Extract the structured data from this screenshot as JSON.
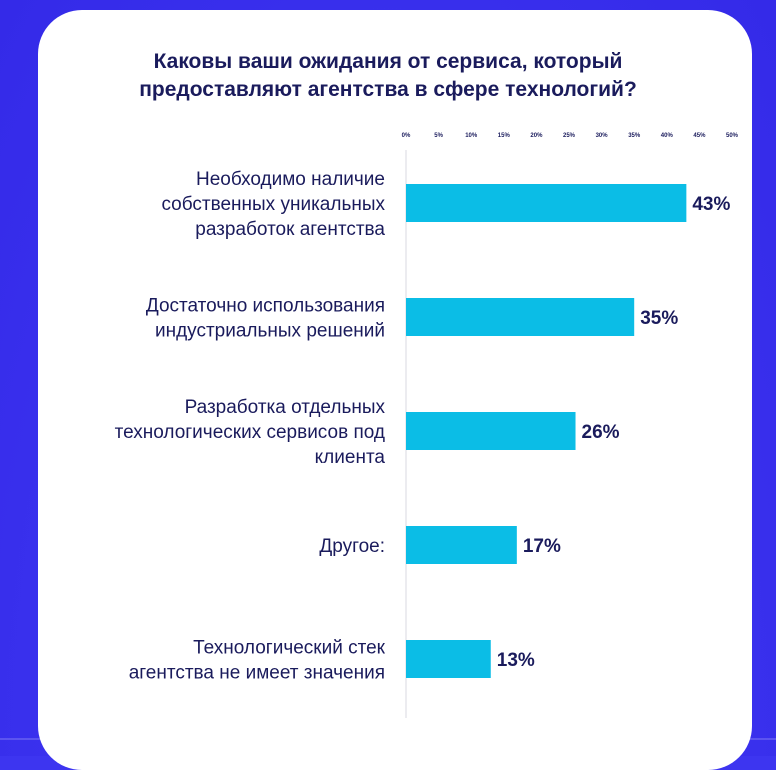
{
  "colors": {
    "background": "#3d35f0",
    "card": "#ffffff",
    "bar": "#0bbde6",
    "text": "#1a1b5c"
  },
  "chart_data": {
    "type": "bar",
    "orientation": "horizontal",
    "title_lines": [
      "Каковы ваши ожидания от сервиса, который",
      "предоставляют агентства в сфере технологий?"
    ],
    "xlim": [
      0,
      50
    ],
    "ticks": [
      "0%",
      "5%",
      "10%",
      "15%",
      "20%",
      "25%",
      "30%",
      "35%",
      "40%",
      "45%",
      "50%"
    ],
    "categories": [
      [
        "Необходимо наличие",
        "собственных уникальных",
        "разработок агентства"
      ],
      [
        "Достаточно использования",
        "индустриальных решений"
      ],
      [
        "Разработка отдельных",
        "технологических сервисов под",
        "клиента"
      ],
      [
        "Другое:"
      ],
      [
        "Технологический стек",
        "агентства не имеет значения"
      ]
    ],
    "values": [
      43,
      35,
      26,
      17,
      13
    ],
    "value_labels": [
      "43%",
      "35%",
      "26%",
      "17%",
      "13%"
    ],
    "grid": false,
    "legend": "none"
  }
}
